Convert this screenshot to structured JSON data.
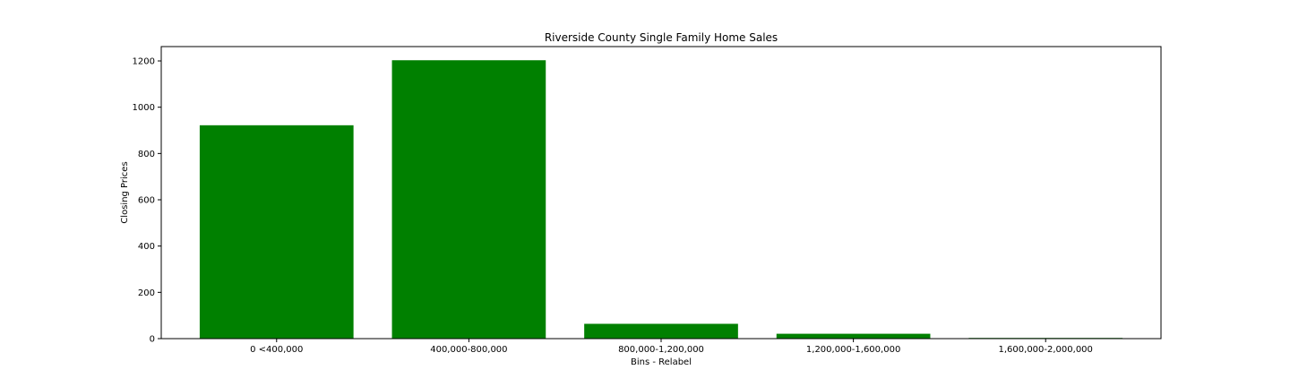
{
  "chart_data": {
    "type": "bar",
    "title": "Riverside County Single Family Home Sales",
    "xlabel": "Bins - Relabel",
    "ylabel": "Closing Prices",
    "categories": [
      "0 <400,000",
      "400,000-800,000",
      "800,000-1,200,000",
      "1,200,000-1,600,000",
      "1,600,000-2,000,000"
    ],
    "values": [
      922,
      1203,
      64,
      21,
      3
    ],
    "ylim": [
      0,
      1262
    ],
    "yticks": [
      0,
      200,
      400,
      600,
      800,
      1000,
      1200
    ],
    "grid": false,
    "legend": "none",
    "bar_color": "#008000"
  }
}
